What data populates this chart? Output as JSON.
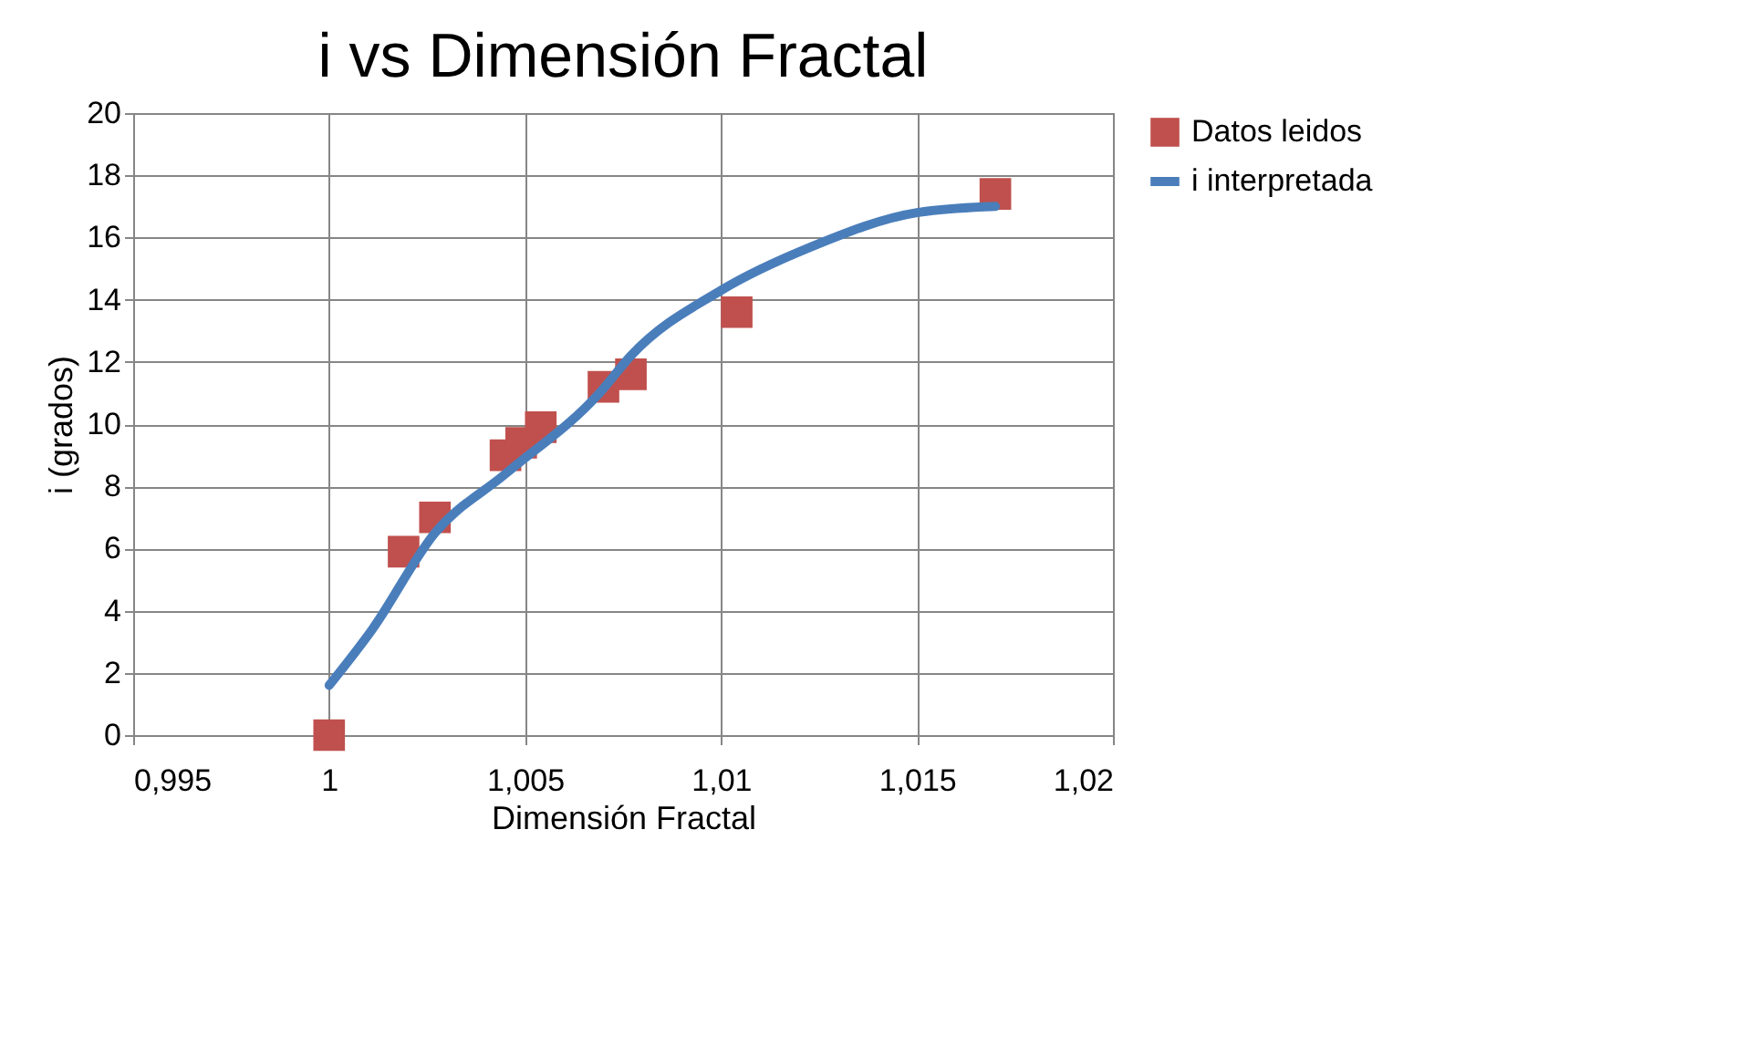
{
  "chart_data": {
    "type": "scatter",
    "title": "i vs Dimensión Fractal",
    "xlabel": "Dimensión Fractal",
    "ylabel": "i (grados)",
    "xlim": [
      0.995,
      1.02
    ],
    "xticks": [
      {
        "value": 0.995,
        "label": "0,995"
      },
      1,
      {
        "value": 1.005,
        "label": "1,005"
      },
      {
        "value": 1.01,
        "label": "1,01"
      },
      {
        "value": 1.015,
        "label": "1,015"
      },
      {
        "value": 1.02,
        "label": "1,02"
      }
    ],
    "ylim": [
      0,
      20
    ],
    "yticks": [
      0,
      2,
      4,
      6,
      8,
      10,
      12,
      14,
      16,
      18,
      20
    ],
    "grid": true,
    "legend": "right",
    "series": [
      {
        "name": "Datos leidos",
        "marker": "square",
        "color": "#c0504d",
        "x": [
          1.0,
          1.0019,
          1.0027,
          1.0045,
          1.0049,
          1.0054,
          1.007,
          1.0077,
          1.0104,
          1.017
        ],
        "values": [
          0,
          5.9,
          7.0,
          9.0,
          9.4,
          9.9,
          11.2,
          11.6,
          13.6,
          17.4
        ]
      },
      {
        "name": "i interpretada",
        "type": "line",
        "marker": "none",
        "line_style": "solid",
        "color": "#4a7ebb",
        "x": [
          1.0,
          1.0011,
          1.0027,
          1.0045,
          1.0069,
          1.0077,
          1.01,
          1.0123,
          1.015,
          1.017
        ],
        "values": [
          1.6,
          3.4,
          6.5,
          8.4,
          11.0,
          12.2,
          14.3,
          15.7,
          16.8,
          17.0
        ]
      }
    ]
  }
}
